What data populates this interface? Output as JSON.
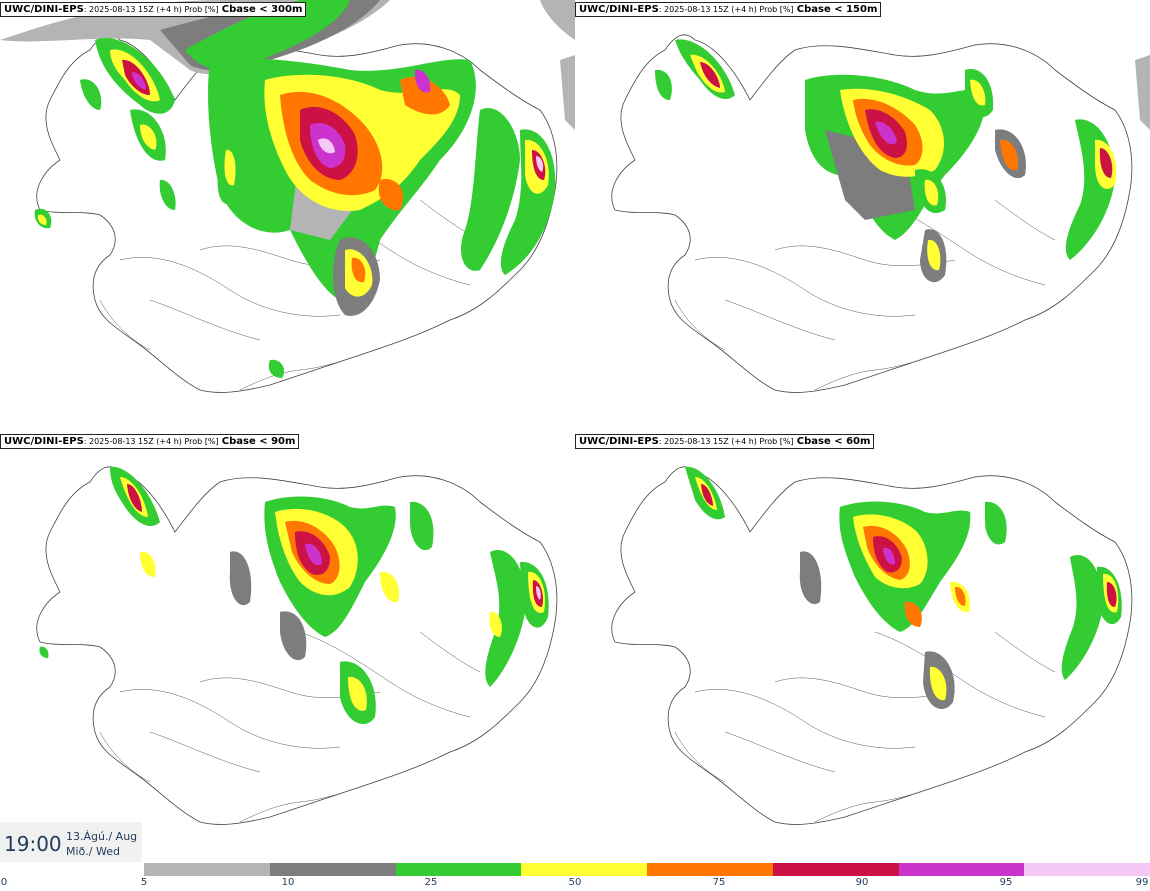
{
  "model": "UWC/DINI-EPS",
  "run_info": ": 2025-08-13 15Z (+4 h) Prob [%]",
  "panels": [
    {
      "threshold": "Cbase < 300m"
    },
    {
      "threshold": "Cbase < 150m"
    },
    {
      "threshold": "Cbase < 90m"
    },
    {
      "threshold": "Cbase < 60m"
    }
  ],
  "valid_time": "19:00",
  "valid_date_line1": "13.Ágú./ Aug",
  "valid_date_line2": "Mið./ Wed",
  "colorbar": {
    "ticks": [
      "0",
      "5",
      "10",
      "25",
      "50",
      "75",
      "90",
      "95",
      "99"
    ],
    "colors": [
      "#b4b4b4",
      "#7d7d7d",
      "#33cc33",
      "#ffff33",
      "#ff7700",
      "#cc1144",
      "#cc33cc",
      "#f5c8f5"
    ]
  },
  "palette": {
    "p5": "#b4b4b4",
    "p10": "#7d7d7d",
    "p25": "#33cc33",
    "p50": "#ffff33",
    "p75": "#ff7700",
    "p90": "#cc1144",
    "p95": "#cc33cc",
    "p99": "#f5c8f5"
  }
}
